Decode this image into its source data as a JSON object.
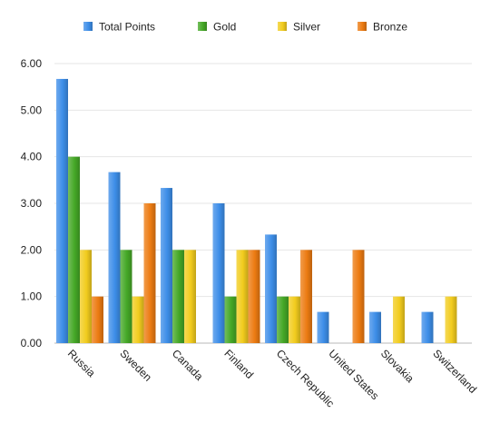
{
  "chart_data": {
    "type": "bar",
    "title": "",
    "xlabel": "",
    "ylabel": "",
    "ylim": [
      0,
      6
    ],
    "yticks": [
      "0.00",
      "1.00",
      "2.00",
      "3.00",
      "4.00",
      "5.00",
      "6.00"
    ],
    "grid": true,
    "legend_position": "top",
    "categories": [
      "Russia",
      "Sweden",
      "Canada",
      "Finland",
      "Czech Republic",
      "United States",
      "Slovakia",
      "Switzerland"
    ],
    "series": [
      {
        "name": "Total Points",
        "color": "#3d8ee8",
        "values": [
          5.67,
          3.67,
          3.33,
          3.0,
          2.33,
          0.67,
          0.67,
          0.67
        ]
      },
      {
        "name": "Gold",
        "color": "#45a827",
        "values": [
          4,
          2,
          2,
          1,
          1,
          0,
          0,
          0
        ]
      },
      {
        "name": "Silver",
        "color": "#f2cc1e",
        "values": [
          2,
          1,
          2,
          2,
          1,
          0,
          1,
          1
        ]
      },
      {
        "name": "Bronze",
        "color": "#ec7b12",
        "values": [
          1,
          3,
          0,
          2,
          2,
          2,
          0,
          0
        ]
      }
    ]
  }
}
